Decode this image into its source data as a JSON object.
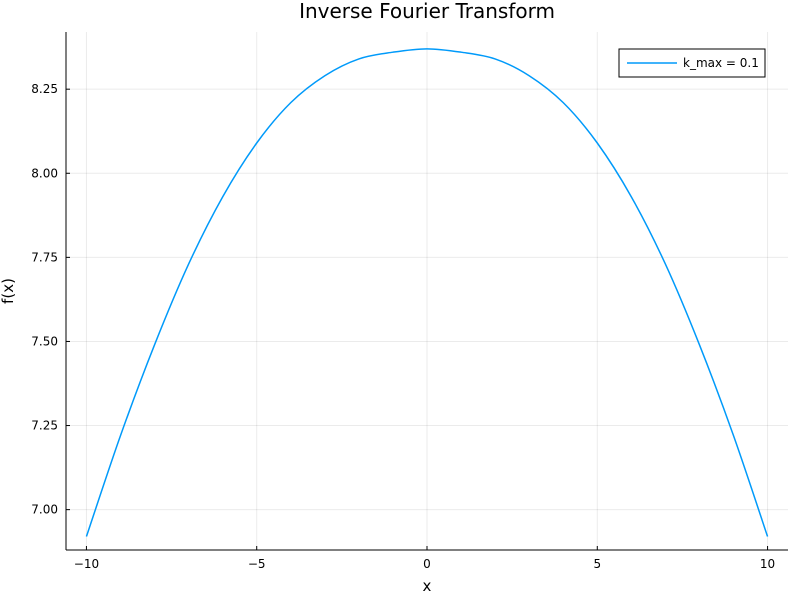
{
  "chart_data": {
    "type": "line",
    "title": "Inverse Fourier Transform",
    "xlabel": "x",
    "ylabel": "f(x)",
    "xlim": [
      -10.6,
      10.6
    ],
    "ylim": [
      6.88,
      8.42
    ],
    "xticks": [
      -10,
      -5,
      0,
      5,
      10
    ],
    "xtick_labels": [
      "−10",
      "−5",
      "0",
      "5",
      "10"
    ],
    "yticks": [
      7.0,
      7.25,
      7.5,
      7.75,
      8.0,
      8.25
    ],
    "ytick_labels": [
      "7.00",
      "7.25",
      "7.50",
      "7.75",
      "8.00",
      "8.25"
    ],
    "grid": true,
    "legend_position": "top-right",
    "series": [
      {
        "name": "k_max = 0.1",
        "color": "#009AFA",
        "x": [
          -10,
          -9,
          -8,
          -7,
          -6,
          -5,
          -4,
          -3,
          -2,
          -1,
          0,
          1,
          2,
          3,
          4,
          5,
          6,
          7,
          8,
          9,
          10
        ],
        "y": [
          6.92,
          7.22,
          7.49,
          7.73,
          7.93,
          8.09,
          8.21,
          8.29,
          8.34,
          8.36,
          8.37,
          8.36,
          8.34,
          8.29,
          8.21,
          8.09,
          7.93,
          7.73,
          7.49,
          7.22,
          6.92
        ]
      }
    ]
  }
}
